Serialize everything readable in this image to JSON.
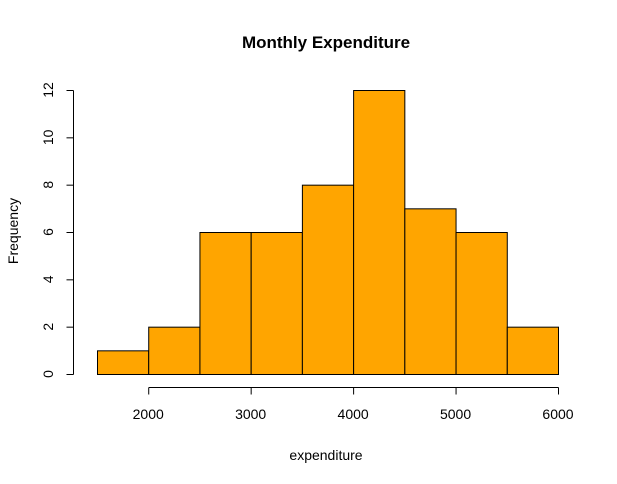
{
  "chart_data": {
    "type": "bar",
    "subtype": "histogram",
    "title": "Monthly Expenditure",
    "xlabel": "expenditure",
    "ylabel": "Frequency",
    "bin_edges": [
      1500,
      2000,
      2500,
      3000,
      3500,
      4000,
      4500,
      5000,
      5500,
      6000
    ],
    "values": [
      1,
      2,
      6,
      6,
      8,
      12,
      7,
      6,
      2
    ],
    "xlim": [
      1500,
      6000
    ],
    "ylim": [
      0,
      12
    ],
    "x_ticks": [
      2000,
      3000,
      4000,
      5000,
      6000
    ],
    "y_ticks": [
      0,
      2,
      4,
      6,
      8,
      10,
      12
    ],
    "bar_color": "#FFA500",
    "grid": false,
    "legend": "none"
  }
}
